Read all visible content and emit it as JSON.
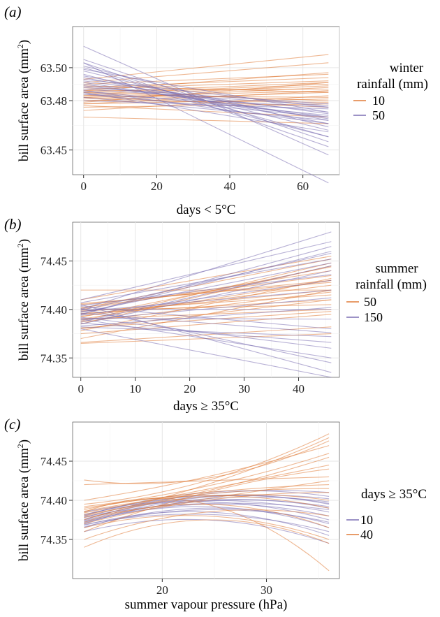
{
  "figure": {
    "panels": [
      {
        "tag_open": "(",
        "tag": "a",
        "tag_close": ")"
      },
      {
        "tag_open": "(",
        "tag": "b",
        "tag_close": ")"
      },
      {
        "tag_open": "(",
        "tag": "c",
        "tag_close": ")"
      }
    ]
  },
  "chart_data": [
    {
      "type": "line",
      "panel": "a",
      "xlabel": "days < 5°C",
      "ylabel": "bill surface area (mm",
      "ylabel_sup": "2",
      "ylabel_close": ")",
      "xlim": [
        -3,
        70
      ],
      "ylim": [
        63.435,
        63.525
      ],
      "xticks": [
        0,
        20,
        40,
        60
      ],
      "yticks": [
        63.45,
        63.48,
        63.5
      ],
      "ytick_labels": [
        "63.45",
        "63.48",
        "63.50"
      ],
      "x_range": [
        0,
        67
      ],
      "grid": true,
      "legend": {
        "title_line1": "winter",
        "title_line2": "rainfall (mm)",
        "position": "right"
      },
      "series": [
        {
          "name": "10",
          "color": "#e07b39",
          "lines": [
            [
              63.483,
              63.489
            ],
            [
              63.487,
              63.492
            ],
            [
              63.48,
              63.485
            ],
            [
              63.478,
              63.486
            ],
            [
              63.485,
              63.48
            ],
            [
              63.49,
              63.496
            ],
            [
              63.476,
              63.478
            ],
            [
              63.483,
              63.482
            ],
            [
              63.481,
              63.488
            ],
            [
              63.488,
              63.494
            ],
            [
              63.474,
              63.483
            ],
            [
              63.486,
              63.487
            ],
            [
              63.482,
              63.476
            ],
            [
              63.479,
              63.491
            ],
            [
              63.491,
              63.503
            ],
            [
              63.484,
              63.49
            ],
            [
              63.477,
              63.47
            ],
            [
              63.489,
              63.485
            ],
            [
              63.48,
              63.479
            ],
            [
              63.486,
              63.497
            ],
            [
              63.482,
              63.486
            ],
            [
              63.493,
              63.508
            ],
            [
              63.47,
              63.466
            ],
            [
              63.485,
              63.491
            ],
            [
              63.478,
              63.481
            ]
          ]
        },
        {
          "name": "50",
          "color": "#7b6fb3",
          "lines": [
            [
              63.513,
              63.447
            ],
            [
              63.505,
              63.455
            ],
            [
              63.495,
              63.468
            ],
            [
              63.49,
              63.47
            ],
            [
              63.486,
              63.466
            ],
            [
              63.5,
              63.458
            ],
            [
              63.484,
              63.476
            ],
            [
              63.492,
              63.472
            ],
            [
              63.498,
              63.462
            ],
            [
              63.503,
              63.452
            ],
            [
              63.488,
              63.478
            ],
            [
              63.48,
              63.475
            ],
            [
              63.494,
              63.466
            ],
            [
              63.499,
              63.473
            ],
            [
              63.486,
              63.471
            ],
            [
              63.485,
              63.461
            ],
            [
              63.491,
              63.469
            ],
            [
              63.503,
              63.43
            ],
            [
              63.489,
              63.473
            ],
            [
              63.482,
              63.468
            ],
            [
              63.496,
              63.458
            ],
            [
              63.487,
              63.477
            ],
            [
              63.493,
              63.476
            ],
            [
              63.484,
              63.47
            ],
            [
              63.501,
              63.464
            ]
          ]
        }
      ]
    },
    {
      "type": "line",
      "panel": "b",
      "xlabel": "days ≥ 35°C",
      "ylabel": "bill surface area (mm",
      "ylabel_sup": "2",
      "ylabel_close": ")",
      "xlim": [
        -1.5,
        47.5
      ],
      "ylim": [
        74.33,
        74.49
      ],
      "xticks": [
        0,
        10,
        20,
        30,
        40
      ],
      "yticks": [
        74.35,
        74.4,
        74.45
      ],
      "ytick_labels": [
        "74.35",
        "74.40",
        "74.45"
      ],
      "x_range": [
        0,
        46
      ],
      "grid": true,
      "legend": {
        "title_line1": "summer",
        "title_line2": "rainfall (mm)",
        "position": "right"
      },
      "series": [
        {
          "name": "50",
          "color": "#e07b39",
          "lines": [
            [
              74.4,
              74.44
            ],
            [
              74.39,
              74.43
            ],
            [
              74.395,
              74.42
            ],
            [
              74.38,
              74.41
            ],
            [
              74.37,
              74.42
            ],
            [
              74.365,
              74.375
            ],
            [
              74.405,
              74.43
            ],
            [
              74.385,
              74.445
            ],
            [
              74.398,
              74.415
            ],
            [
              74.39,
              74.4
            ],
            [
              74.41,
              74.455
            ],
            [
              74.375,
              74.395
            ],
            [
              74.393,
              74.425
            ],
            [
              74.402,
              74.435
            ],
            [
              74.388,
              74.448
            ],
            [
              74.396,
              74.41
            ],
            [
              74.381,
              74.398
            ],
            [
              74.42,
              74.42
            ],
            [
              74.378,
              74.432
            ],
            [
              74.399,
              74.405
            ],
            [
              74.366,
              74.382
            ],
            [
              74.406,
              74.428
            ],
            [
              74.392,
              74.444
            ],
            [
              74.387,
              74.418
            ],
            [
              74.401,
              74.452
            ]
          ]
        },
        {
          "name": "150",
          "color": "#7b6fb3",
          "lines": [
            [
              74.4,
              74.48
            ],
            [
              74.395,
              74.46
            ],
            [
              74.405,
              74.335
            ],
            [
              74.39,
              74.35
            ],
            [
              74.385,
              74.44
            ],
            [
              74.41,
              74.47
            ],
            [
              74.38,
              74.33
            ],
            [
              74.4,
              74.4
            ],
            [
              74.392,
              74.36
            ],
            [
              74.398,
              74.42
            ],
            [
              74.387,
              74.445
            ],
            [
              74.403,
              74.38
            ],
            [
              74.395,
              74.465
            ],
            [
              74.382,
              74.372
            ],
            [
              74.407,
              74.452
            ],
            [
              74.391,
              74.39
            ],
            [
              74.399,
              74.458
            ],
            [
              74.386,
              74.366
            ],
            [
              74.394,
              74.43
            ],
            [
              74.401,
              74.345
            ],
            [
              74.389,
              74.412
            ],
            [
              74.396,
              74.376
            ],
            [
              74.404,
              74.436
            ],
            [
              74.383,
              74.402
            ],
            [
              74.397,
              74.448
            ]
          ]
        }
      ]
    },
    {
      "type": "line",
      "panel": "c",
      "xlabel": "summer vapour pressure (hPa)",
      "ylabel": "bill surface area (mm",
      "ylabel_sup": "2",
      "ylabel_close": ")",
      "xlim": [
        11.4,
        37.0
      ],
      "ylim": [
        74.3,
        74.5
      ],
      "xticks": [
        20,
        30
      ],
      "yticks": [
        74.35,
        74.4,
        74.45
      ],
      "ytick_labels": [
        "74.35",
        "74.40",
        "74.45"
      ],
      "x_range": [
        12.5,
        36
      ],
      "grid": true,
      "legend": {
        "title_line1": "days ≥ 35°C",
        "title_line2": "",
        "position": "right"
      },
      "series": [
        {
          "name": "10",
          "color": "#7b6fb3",
          "curves": [
            [
              74.37,
              74.4,
              74.39
            ],
            [
              74.375,
              74.405,
              74.395
            ],
            [
              74.365,
              74.39,
              74.37
            ],
            [
              74.38,
              74.41,
              74.405
            ],
            [
              74.372,
              74.395,
              74.38
            ],
            [
              74.385,
              74.4,
              74.385
            ],
            [
              74.368,
              74.385,
              74.355
            ],
            [
              74.378,
              74.408,
              74.41
            ],
            [
              74.36,
              74.375,
              74.345
            ],
            [
              74.382,
              74.398,
              74.375
            ],
            [
              74.374,
              74.402,
              74.398
            ],
            [
              74.371,
              74.392,
              74.365
            ],
            [
              74.376,
              74.404,
              74.402
            ],
            [
              74.366,
              74.388,
              74.372
            ],
            [
              74.379,
              74.396,
              74.388
            ],
            [
              74.373,
              74.399,
              74.392
            ],
            [
              74.369,
              74.382,
              74.36
            ],
            [
              74.381,
              74.406,
              74.396
            ]
          ]
        },
        {
          "name": "40",
          "color": "#e07b39",
          "curves": [
            [
              74.38,
              74.42,
              74.48
            ],
            [
              74.39,
              74.41,
              74.42
            ],
            [
              74.37,
              74.4,
              74.41
            ],
            [
              74.4,
              74.43,
              74.47
            ],
            [
              74.385,
              74.395,
              74.31
            ],
            [
              74.36,
              74.41,
              74.44
            ],
            [
              74.375,
              74.405,
              74.4
            ],
            [
              74.395,
              74.425,
              74.485
            ],
            [
              74.365,
              74.38,
              74.35
            ],
            [
              74.42,
              74.425,
              74.43
            ],
            [
              74.382,
              74.412,
              74.455
            ],
            [
              74.35,
              74.385,
              74.38
            ],
            [
              74.388,
              74.406,
              74.39
            ],
            [
              74.378,
              74.402,
              74.425
            ],
            [
              74.392,
              74.418,
              74.46
            ],
            [
              74.372,
              74.395,
              74.365
            ],
            [
              74.384,
              74.414,
              74.445
            ],
            [
              74.34,
              74.375,
              74.345
            ],
            [
              74.386,
              74.408,
              74.415
            ],
            [
              74.426,
              74.428,
              74.476
            ]
          ]
        }
      ]
    }
  ]
}
